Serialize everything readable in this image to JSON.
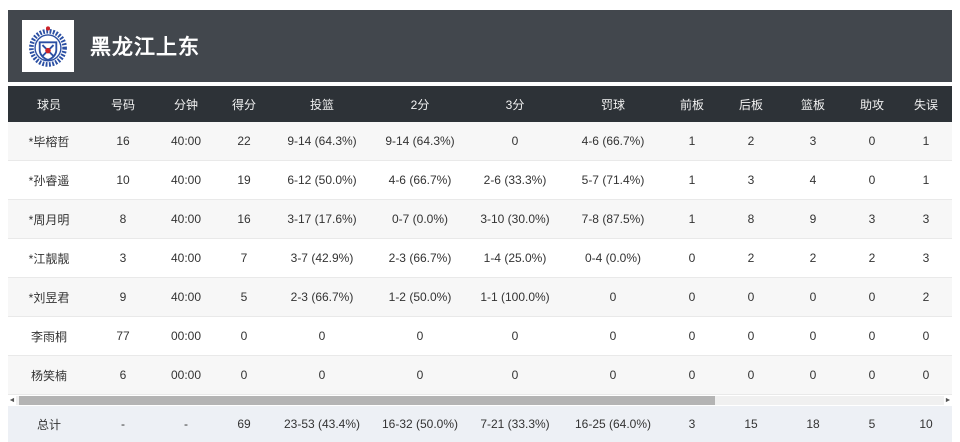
{
  "team": {
    "name": "黑龙江上东",
    "logo": "team-crest-blue-red-round-emblem"
  },
  "table": {
    "columns": [
      "球员",
      "号码",
      "分钟",
      "得分",
      "投篮",
      "2分",
      "3分",
      "罚球",
      "前板",
      "后板",
      "篮板",
      "助攻",
      "失误"
    ],
    "rows": [
      [
        "*毕榕哲",
        "16",
        "40:00",
        "22",
        "9-14 (64.3%)",
        "9-14 (64.3%)",
        "0",
        "4-6 (66.7%)",
        "1",
        "2",
        "3",
        "0",
        "1"
      ],
      [
        "*孙睿遥",
        "10",
        "40:00",
        "19",
        "6-12 (50.0%)",
        "4-6 (66.7%)",
        "2-6 (33.3%)",
        "5-7 (71.4%)",
        "1",
        "3",
        "4",
        "0",
        "1"
      ],
      [
        "*周月明",
        "8",
        "40:00",
        "16",
        "3-17 (17.6%)",
        "0-7 (0.0%)",
        "3-10 (30.0%)",
        "7-8 (87.5%)",
        "1",
        "8",
        "9",
        "3",
        "3"
      ],
      [
        "*江靓靓",
        "3",
        "40:00",
        "7",
        "3-7 (42.9%)",
        "2-3 (66.7%)",
        "1-4 (25.0%)",
        "0-4 (0.0%)",
        "0",
        "2",
        "2",
        "2",
        "3"
      ],
      [
        "*刘昱君",
        "9",
        "40:00",
        "5",
        "2-3 (66.7%)",
        "1-2 (50.0%)",
        "1-1 (100.0%)",
        "0",
        "0",
        "0",
        "0",
        "0",
        "2"
      ],
      [
        "李雨桐",
        "77",
        "00:00",
        "0",
        "0",
        "0",
        "0",
        "0",
        "0",
        "0",
        "0",
        "0",
        "0"
      ],
      [
        "杨笑楠",
        "6",
        "00:00",
        "0",
        "0",
        "0",
        "0",
        "0",
        "0",
        "0",
        "0",
        "0",
        "0"
      ]
    ],
    "total": [
      "总计",
      "-",
      "-",
      "69",
      "23-53 (43.4%)",
      "16-32 (50.0%)",
      "7-21 (33.3%)",
      "16-25 (64.0%)",
      "3",
      "15",
      "18",
      "5",
      "10"
    ]
  },
  "scrollbar": {
    "left_arrow": "◄",
    "right_arrow": "►"
  },
  "colors": {
    "team_bar": "#42474d",
    "table_header": "#2d3237",
    "row_alt": "#f7f7f7",
    "total_row": "#edf0f5",
    "logo_blue": "#2b4fa3",
    "logo_red": "#cc2229"
  }
}
